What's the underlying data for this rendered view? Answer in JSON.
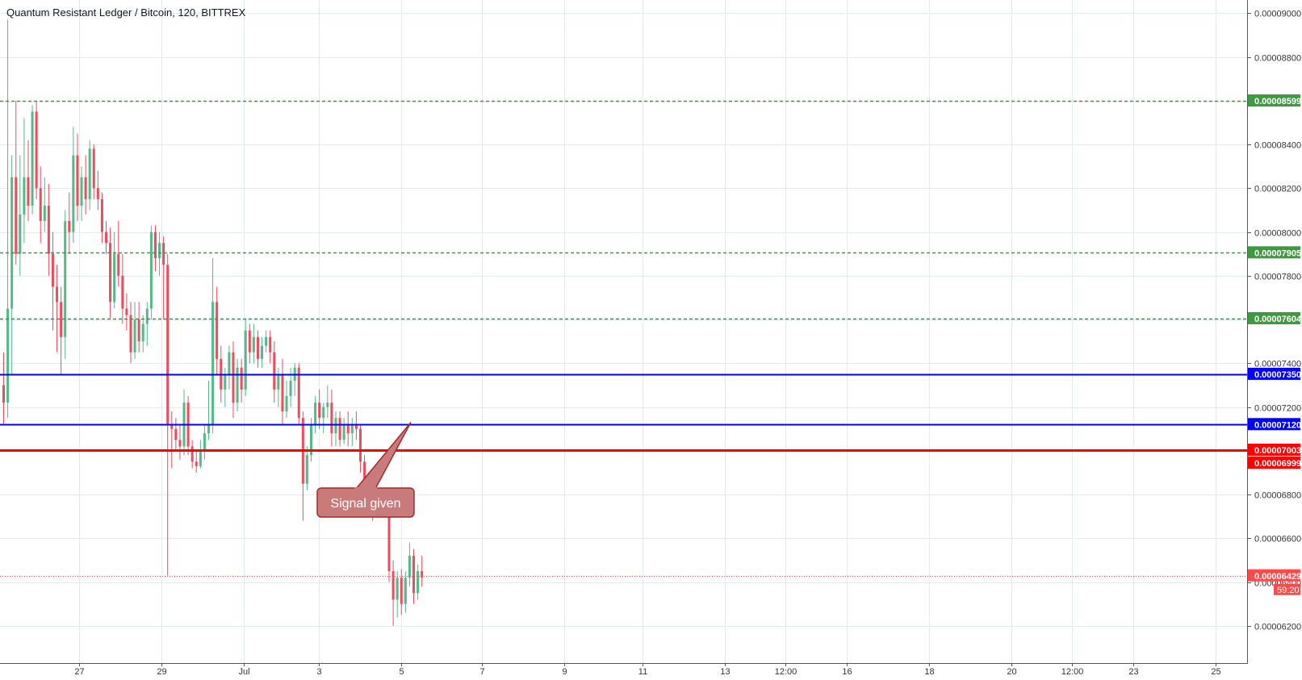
{
  "chart_title": "Quantum Resistant Ledger / Bitcoin, 120, BITTREX",
  "colors": {
    "up": "#26a69a",
    "up_fill": "#53b987",
    "down": "#eb4d5c",
    "grid": "#e1ecf2",
    "support_green": "#3e9a3e",
    "blue_line": "#0000ff",
    "red_line": "#ff0000",
    "last_price": "#ff4a4a",
    "callout_fill": "#c97b7b",
    "callout_border": "#a12b2b"
  },
  "chart_data": {
    "type": "candlestick",
    "symbol": "Quantum Resistant Ledger / Bitcoin",
    "interval": "120",
    "exchange": "BITTREX",
    "ylim": [
      6.03e-05,
      9.06e-05
    ],
    "y_ticks": [
      "0.00006200",
      "0.00006400",
      "0.00006600",
      "0.00006800",
      "0.00007000",
      "0.00007200",
      "0.00007400",
      "0.00007600",
      "0.00007800",
      "0.00008000",
      "0.00008200",
      "0.00008400",
      "0.00008600",
      "0.00008800",
      "0.00009000"
    ],
    "x_ticks": [
      "27",
      "29",
      "Jul",
      "3",
      "5",
      "7",
      "9",
      "11",
      "13",
      "12:00",
      "16",
      "18",
      "20",
      "12:00",
      "23",
      "25"
    ],
    "horizontal_lines": [
      {
        "value": 8.599e-05,
        "label": "0.00008599",
        "style": "dashed",
        "color": "#3e9a3e"
      },
      {
        "value": 7.905e-05,
        "label": "0.00007905",
        "style": "dashed",
        "color": "#3e9a3e"
      },
      {
        "value": 7.604e-05,
        "label": "0.00007604",
        "style": "dashed",
        "color": "#3e9a3e"
      },
      {
        "value": 7.35e-05,
        "label": "0.00007350",
        "style": "solid",
        "color": "#0000ff"
      },
      {
        "value": 7.12e-05,
        "label": "0.00007120",
        "style": "solid",
        "color": "#0000ff"
      },
      {
        "value": 7.003e-05,
        "label": "0.00007003",
        "style": "solid-thick",
        "color": "#ff0000"
      }
    ],
    "extra_price_labels": [
      {
        "value": 6.999e-05,
        "label": "0.00006999",
        "color": "#ff0000"
      }
    ],
    "last_price": {
      "value": 6.429e-05,
      "label": "0.00006429",
      "countdown": "59:20"
    },
    "annotation": {
      "text": "Signal given",
      "target_date": "Jul 5",
      "target_price": 7.13e-05
    },
    "candles_ohlc": [
      [
        7.3e-05,
        7.45e-05,
        7.12e-05,
        7.22e-05
      ],
      [
        7.22e-05,
        8.97e-05,
        7.15e-05,
        7.65e-05
      ],
      [
        7.65e-05,
        8.35e-05,
        7.35e-05,
        8.25e-05
      ],
      [
        8.25e-05,
        8.6e-05,
        7.85e-05,
        7.9e-05
      ],
      [
        7.9e-05,
        8.35e-05,
        7.8e-05,
        8.08e-05
      ],
      [
        8.08e-05,
        8.52e-05,
        7.95e-05,
        8.25e-05
      ],
      [
        8.25e-05,
        8.42e-05,
        8.05e-05,
        8.12e-05
      ],
      [
        8.12e-05,
        8.58e-05,
        8.08e-05,
        8.55e-05
      ],
      [
        8.55e-05,
        8.6e-05,
        8.15e-05,
        8.2e-05
      ],
      [
        8.2e-05,
        8.3e-05,
        7.95e-05,
        8.05e-05
      ],
      [
        8.05e-05,
        8.25e-05,
        8e-05,
        8.12e-05
      ],
      [
        8.12e-05,
        8.22e-05,
        7.8e-05,
        7.9e-05
      ],
      [
        7.9e-05,
        8e-05,
        7.55e-05,
        7.75e-05
      ],
      [
        7.75e-05,
        7.85e-05,
        7.45e-05,
        7.68e-05
      ],
      [
        7.68e-05,
        7.75e-05,
        7.35e-05,
        7.52e-05
      ],
      [
        7.52e-05,
        8.1e-05,
        7.42e-05,
        8.05e-05
      ],
      [
        8.05e-05,
        8.18e-05,
        7.9e-05,
        8e-05
      ],
      [
        8e-05,
        8.48e-05,
        7.95e-05,
        8.35e-05
      ],
      [
        8.35e-05,
        8.45e-05,
        8.05e-05,
        8.12e-05
      ],
      [
        8.12e-05,
        8.3e-05,
        8.05e-05,
        8.25e-05
      ],
      [
        8.25e-05,
        8.35e-05,
        8.08e-05,
        8.15e-05
      ],
      [
        8.15e-05,
        8.42e-05,
        8.1e-05,
        8.38e-05
      ],
      [
        8.38e-05,
        8.4e-05,
        8.15e-05,
        8.2e-05
      ],
      [
        8.2e-05,
        8.28e-05,
        8.1e-05,
        8.15e-05
      ],
      [
        8.15e-05,
        8.18e-05,
        7.95e-05,
        8e-05
      ],
      [
        8e-05,
        8.05e-05,
        7.9e-05,
        7.95e-05
      ],
      [
        7.95e-05,
        8.02e-05,
        7.6e-05,
        7.68e-05
      ],
      [
        7.68e-05,
        8e-05,
        7.65e-05,
        7.9e-05
      ],
      [
        7.9e-05,
        8.05e-05,
        7.75e-05,
        7.8e-05
      ],
      [
        7.8e-05,
        7.9e-05,
        7.58e-05,
        7.65e-05
      ],
      [
        7.65e-05,
        7.72e-05,
        7.55e-05,
        7.62e-05
      ],
      [
        7.62e-05,
        7.68e-05,
        7.4e-05,
        7.45e-05
      ],
      [
        7.45e-05,
        7.68e-05,
        7.42e-05,
        7.6e-05
      ],
      [
        7.6e-05,
        7.68e-05,
        7.45e-05,
        7.5e-05
      ],
      [
        7.5e-05,
        7.62e-05,
        7.45e-05,
        7.58e-05
      ],
      [
        7.58e-05,
        7.68e-05,
        7.48e-05,
        7.65e-05
      ],
      [
        7.65e-05,
        8.03e-05,
        7.6e-05,
        8e-05
      ],
      [
        8e-05,
        8.03e-05,
        7.82e-05,
        7.88e-05
      ],
      [
        7.88e-05,
        8e-05,
        7.8e-05,
        7.95e-05
      ],
      [
        7.95e-05,
        7.98e-05,
        7.6e-05,
        7.85e-05
      ],
      [
        7.85e-05,
        7.9e-05,
        6.43e-05,
        7.12e-05
      ],
      [
        7.12e-05,
        7.18e-05,
        6.92e-05,
        7.1e-05
      ],
      [
        7.1e-05,
        7.15e-05,
        7e-05,
        7.05e-05
      ],
      [
        7.05e-05,
        7.12e-05,
        6.96e-05,
        7.02e-05
      ],
      [
        7.02e-05,
        7.28e-05,
        6.98e-05,
        7.22e-05
      ],
      [
        7.22e-05,
        7.25e-05,
        6.98e-05,
        7.02e-05
      ],
      [
        7.02e-05,
        7.05e-05,
        6.92e-05,
        6.95e-05
      ],
      [
        6.95e-05,
        7e-05,
        6.9e-05,
        6.93e-05
      ],
      [
        6.93e-05,
        7.05e-05,
        6.92e-05,
        7e-05
      ],
      [
        7e-05,
        7.12e-05,
        6.96e-05,
        7.08e-05
      ],
      [
        7.08e-05,
        7.32e-05,
        7.05e-05,
        7.12e-05
      ],
      [
        7.12e-05,
        7.88e-05,
        7.08e-05,
        7.68e-05
      ],
      [
        7.68e-05,
        7.75e-05,
        7.35e-05,
        7.42e-05
      ],
      [
        7.42e-05,
        7.48e-05,
        7.22e-05,
        7.28e-05
      ],
      [
        7.28e-05,
        7.38e-05,
        7.2e-05,
        7.35e-05
      ],
      [
        7.35e-05,
        7.48e-05,
        7.28e-05,
        7.45e-05
      ],
      [
        7.45e-05,
        7.5e-05,
        7.15e-05,
        7.22e-05
      ],
      [
        7.22e-05,
        7.42e-05,
        7.18e-05,
        7.38e-05
      ],
      [
        7.38e-05,
        7.42e-05,
        7.22e-05,
        7.28e-05
      ],
      [
        7.28e-05,
        7.6e-05,
        7.25e-05,
        7.55e-05
      ],
      [
        7.55e-05,
        7.58e-05,
        7.4e-05,
        7.45e-05
      ],
      [
        7.45e-05,
        7.58e-05,
        7.4e-05,
        7.52e-05
      ],
      [
        7.52e-05,
        7.55e-05,
        7.38e-05,
        7.42e-05
      ],
      [
        7.42e-05,
        7.52e-05,
        7.38e-05,
        7.48e-05
      ],
      [
        7.48e-05,
        7.55e-05,
        7.45e-05,
        7.52e-05
      ],
      [
        7.52e-05,
        7.55e-05,
        7.4e-05,
        7.45e-05
      ],
      [
        7.45e-05,
        7.5e-05,
        7.22e-05,
        7.28e-05
      ],
      [
        7.28e-05,
        7.38e-05,
        7.2e-05,
        7.35e-05
      ],
      [
        7.35e-05,
        7.42e-05,
        7.12e-05,
        7.18e-05
      ],
      [
        7.18e-05,
        7.32e-05,
        7.15e-05,
        7.25e-05
      ],
      [
        7.25e-05,
        7.38e-05,
        7.2e-05,
        7.32e-05
      ],
      [
        7.32e-05,
        7.4e-05,
        7.25e-05,
        7.38e-05
      ],
      [
        7.38e-05,
        7.4e-05,
        7.12e-05,
        7.15e-05
      ],
      [
        7.15e-05,
        7.18e-05,
        6.68e-05,
        6.85e-05
      ],
      [
        6.85e-05,
        7.02e-05,
        6.82e-05,
        6.98e-05
      ],
      [
        6.98e-05,
        7.15e-05,
        6.95e-05,
        7.12e-05
      ],
      [
        7.12e-05,
        7.25e-05,
        7.08e-05,
        7.22e-05
      ],
      [
        7.22e-05,
        7.28e-05,
        7.1e-05,
        7.15e-05
      ],
      [
        7.15e-05,
        7.22e-05,
        7.08e-05,
        7.2e-05
      ],
      [
        7.2e-05,
        7.3e-05,
        7.15e-05,
        7.22e-05
      ],
      [
        7.22e-05,
        7.28e-05,
        7.02e-05,
        7.08e-05
      ],
      [
        7.08e-05,
        7.18e-05,
        7.02e-05,
        7.15e-05
      ],
      [
        7.15e-05,
        7.18e-05,
        7.02e-05,
        7.05e-05
      ],
      [
        7.05e-05,
        7.15e-05,
        7.03e-05,
        7.12e-05
      ],
      [
        7.12e-05,
        7.18e-05,
        7.02e-05,
        7.08e-05
      ],
      [
        7.08e-05,
        7.15e-05,
        7.02e-05,
        7.12e-05
      ],
      [
        7.12e-05,
        7.18e-05,
        7.05e-05,
        7.1e-05
      ],
      [
        7.1e-05,
        7.12e-05,
        6.9e-05,
        6.95e-05
      ],
      [
        6.95e-05,
        6.98e-05,
        6.78e-05,
        6.82e-05
      ],
      [
        6.82e-05,
        6.9e-05,
        6.72e-05,
        6.8e-05
      ],
      [
        6.8e-05,
        6.85e-05,
        6.68e-05,
        6.72e-05
      ],
      [
        6.72e-05,
        6.82e-05,
        6.7e-05,
        6.8e-05
      ],
      [
        6.8e-05,
        6.82e-05,
        6.72e-05,
        6.78e-05
      ],
      [
        6.78e-05,
        6.82e-05,
        6.7e-05,
        6.75e-05
      ],
      [
        6.75e-05,
        6.78e-05,
        6.4e-05,
        6.45e-05
      ],
      [
        6.45e-05,
        6.5e-05,
        6.2e-05,
        6.32e-05
      ],
      [
        6.32e-05,
        6.45e-05,
        6.24e-05,
        6.42e-05
      ],
      [
        6.42e-05,
        6.46e-05,
        6.25e-05,
        6.3e-05
      ],
      [
        6.3e-05,
        6.45e-05,
        6.26e-05,
        6.42e-05
      ],
      [
        6.42e-05,
        6.58e-05,
        6.38e-05,
        6.52e-05
      ],
      [
        6.52e-05,
        6.55e-05,
        6.3e-05,
        6.35e-05
      ],
      [
        6.35e-05,
        6.48e-05,
        6.32e-05,
        6.45e-05
      ],
      [
        6.45e-05,
        6.52e-05,
        6.38e-05,
        6.42e-05
      ]
    ]
  }
}
